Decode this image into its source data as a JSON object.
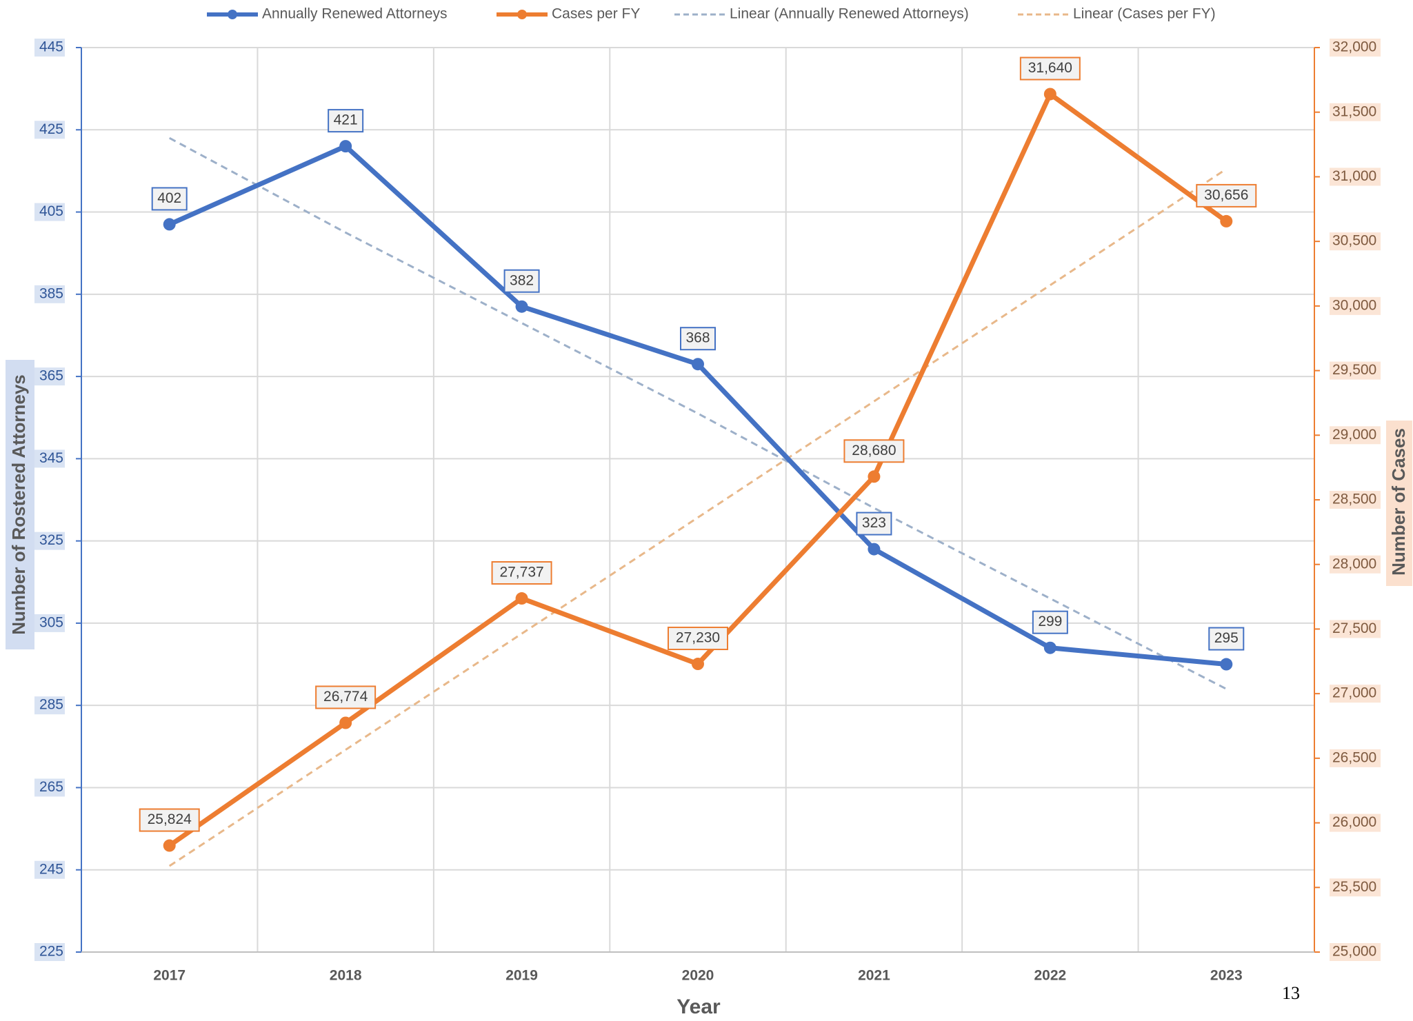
{
  "chart_data": {
    "type": "line",
    "categories": [
      "2017",
      "2018",
      "2019",
      "2020",
      "2021",
      "2022",
      "2023"
    ],
    "series": [
      {
        "name": "Annually Renewed Attorneys",
        "color": "#4472c4",
        "values": [
          402,
          421,
          382,
          368,
          323,
          299,
          295
        ]
      },
      {
        "name": "Cases per FY",
        "color": "#ed7d31",
        "axis": "y2",
        "values": [
          25824,
          26774,
          27737,
          27230,
          28680,
          31640,
          30656
        ],
        "value_labels": [
          "25,824",
          "26,774",
          "27,737",
          "27,230",
          "28,680",
          "31,640",
          "30,656"
        ]
      },
      {
        "name": "Linear (Annually Renewed Attorneys)",
        "color": "#9db0c9",
        "dashed": true,
        "values": [
          423,
          400,
          378,
          356,
          333,
          311,
          289
        ]
      },
      {
        "name": "Linear (Cases per FY)",
        "color": "#e8b88a",
        "dashed": true,
        "axis": "y2",
        "values": [
          25666,
          26565,
          27464,
          28363,
          29262,
          30161,
          31060
        ]
      }
    ],
    "x_label": "Year",
    "y_label": "Number of Rostered Attorneys",
    "y2_label": "Number of Cases",
    "ylim": [
      225,
      445
    ],
    "yticks": [
      225,
      245,
      265,
      285,
      305,
      325,
      345,
      365,
      385,
      405,
      425,
      445
    ],
    "y2lim": [
      25000,
      32000
    ],
    "y2ticks": [
      {
        "value": 25000,
        "label": "25,000"
      },
      {
        "value": 25500,
        "label": "25,500"
      },
      {
        "value": 26000,
        "label": "26,000"
      },
      {
        "value": 26500,
        "label": "26,500"
      },
      {
        "value": 27000,
        "label": "27,000"
      },
      {
        "value": 27500,
        "label": "27,500"
      },
      {
        "value": 28000,
        "label": "28,000"
      },
      {
        "value": 28500,
        "label": "28,500"
      },
      {
        "value": 29000,
        "label": "29,000"
      },
      {
        "value": 29500,
        "label": "29,500"
      },
      {
        "value": 30000,
        "label": "30,000"
      },
      {
        "value": 30500,
        "label": "30,500"
      },
      {
        "value": 31000,
        "label": "31,000"
      },
      {
        "value": 31500,
        "label": "31,500"
      },
      {
        "value": 32000,
        "label": "32,000"
      }
    ],
    "grid": true,
    "legend": "top"
  },
  "page_number": "13"
}
